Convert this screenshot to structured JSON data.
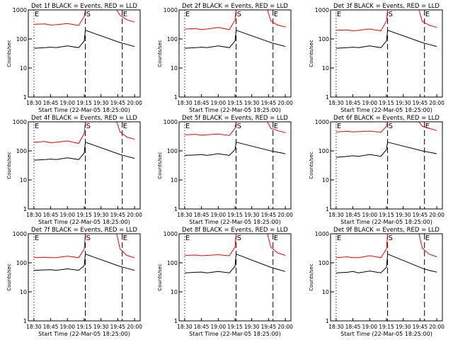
{
  "chart_data": [
    {
      "type": "line",
      "title": "Det 1f BLACK = Events, RED = LLD",
      "xlabel": "Start Time (22-Mar-05 18:25:00)",
      "ylabel": "Counts/sec",
      "x_ticks": [
        "18:30",
        "18:45",
        "19:00",
        "19:15",
        "19:30",
        "19:45",
        "20:00"
      ],
      "y_ticks": [
        "1",
        "10",
        "100",
        "1000"
      ],
      "ylim": [
        1,
        1000
      ],
      "yscale": "log",
      "markers": [
        {
          "label": "E",
          "time": "18:30"
        },
        {
          "label": "S",
          "time": "19:16"
        },
        {
          "label": "E",
          "time": "19:49"
        }
      ],
      "series": [
        {
          "name": "LLD",
          "color": "#ff0000",
          "x": [
            "18:30",
            "18:40",
            "18:45",
            "18:50",
            "19:00",
            "19:10",
            "19:15",
            "19:16",
            "19:44",
            "19:47",
            "19:53",
            "20:00"
          ],
          "y": [
            320,
            330,
            300,
            310,
            340,
            290,
            600,
            1000,
            1000,
            650,
            460,
            380
          ]
        },
        {
          "name": "Events",
          "color": "#000000",
          "x": [
            "18:30",
            "18:40",
            "18:45",
            "18:50",
            "19:00",
            "19:10",
            "19:15",
            "19:16",
            "19:47",
            "19:53",
            "20:00"
          ],
          "y": [
            48,
            50,
            52,
            50,
            58,
            50,
            85,
            200,
            75,
            65,
            55
          ]
        }
      ]
    },
    {
      "type": "line",
      "title": "Det 2f BLACK = Events, RED = LLD",
      "xlabel": "Start Time (22-Mar-05 18:25:00)",
      "ylabel": "Counts/sec",
      "x_ticks": [
        "18:30",
        "18:45",
        "19:00",
        "19:15",
        "19:30",
        "19:45",
        "20:00"
      ],
      "y_ticks": [
        "1",
        "10",
        "100",
        "1000"
      ],
      "ylim": [
        1,
        1000
      ],
      "yscale": "log",
      "markers": [
        {
          "label": "E",
          "time": "18:30"
        },
        {
          "label": "S",
          "time": "19:16"
        },
        {
          "label": "E",
          "time": "19:49"
        }
      ],
      "series": [
        {
          "name": "LLD",
          "color": "#ff0000",
          "x": [
            "18:30",
            "18:40",
            "18:45",
            "18:50",
            "19:00",
            "19:10",
            "19:15",
            "19:16",
            "19:44",
            "19:47",
            "19:53",
            "20:00"
          ],
          "y": [
            220,
            230,
            210,
            220,
            250,
            210,
            450,
            1000,
            1000,
            420,
            300,
            260
          ]
        },
        {
          "name": "Events",
          "color": "#000000",
          "x": [
            "18:30",
            "18:40",
            "18:45",
            "18:50",
            "19:00",
            "19:10",
            "19:15",
            "19:16",
            "19:47",
            "19:53",
            "20:00"
          ],
          "y": [
            48,
            50,
            52,
            50,
            58,
            50,
            85,
            200,
            75,
            65,
            55
          ]
        }
      ]
    },
    {
      "type": "line",
      "title": "Det 3f BLACK = Events, RED = LLD",
      "xlabel": "Start Time (22-Mar-05 18:25:00)",
      "ylabel": "Counts/sec",
      "x_ticks": [
        "18:30",
        "18:45",
        "19:00",
        "19:15",
        "19:30",
        "19:45",
        "20:00"
      ],
      "y_ticks": [
        "1",
        "10",
        "100",
        "1000"
      ],
      "ylim": [
        1,
        1000
      ],
      "yscale": "log",
      "markers": [
        {
          "label": "E",
          "time": "18:30"
        },
        {
          "label": "S",
          "time": "19:16"
        },
        {
          "label": "E",
          "time": "19:49"
        }
      ],
      "series": [
        {
          "name": "LLD",
          "color": "#ff0000",
          "x": [
            "18:30",
            "18:40",
            "18:45",
            "18:50",
            "19:00",
            "19:10",
            "19:15",
            "19:16",
            "19:44",
            "19:47",
            "19:53",
            "20:00"
          ],
          "y": [
            200,
            205,
            190,
            200,
            220,
            190,
            420,
            1000,
            1000,
            400,
            300,
            250
          ]
        },
        {
          "name": "Events",
          "color": "#000000",
          "x": [
            "18:30",
            "18:40",
            "18:45",
            "18:50",
            "19:00",
            "19:10",
            "19:15",
            "19:16",
            "19:47",
            "19:53",
            "20:00"
          ],
          "y": [
            48,
            50,
            52,
            50,
            58,
            50,
            85,
            200,
            75,
            65,
            55
          ]
        }
      ]
    },
    {
      "type": "line",
      "title": "Det 4f BLACK = Events, RED = LLD",
      "xlabel": "Start Time (22-Mar-05 18:25:00)",
      "ylabel": "Counts/sec",
      "x_ticks": [
        "18:30",
        "18:45",
        "19:00",
        "19:15",
        "19:30",
        "19:45",
        "20:00"
      ],
      "y_ticks": [
        "1",
        "10",
        "100",
        "1000"
      ],
      "ylim": [
        1,
        1000
      ],
      "yscale": "log",
      "markers": [
        {
          "label": "E",
          "time": "18:30"
        },
        {
          "label": "S",
          "time": "19:16"
        },
        {
          "label": "E",
          "time": "19:49"
        }
      ],
      "series": [
        {
          "name": "LLD",
          "color": "#ff0000",
          "x": [
            "18:30",
            "18:40",
            "18:45",
            "18:50",
            "19:00",
            "19:10",
            "19:15",
            "19:16",
            "19:44",
            "19:47",
            "19:53",
            "20:00"
          ],
          "y": [
            200,
            210,
            190,
            200,
            220,
            180,
            400,
            1000,
            1000,
            450,
            300,
            250
          ]
        },
        {
          "name": "Events",
          "color": "#000000",
          "x": [
            "18:30",
            "18:40",
            "18:45",
            "18:50",
            "19:00",
            "19:10",
            "19:15",
            "19:16",
            "19:47",
            "19:53",
            "20:00"
          ],
          "y": [
            48,
            50,
            52,
            50,
            58,
            50,
            85,
            200,
            75,
            65,
            55
          ]
        }
      ]
    },
    {
      "type": "line",
      "title": "Det 5f BLACK = Events, RED = LLD",
      "xlabel": "Start Time (22-Mar-05 18:25:00)",
      "ylabel": "Counts/sec",
      "x_ticks": [
        "18:30",
        "18:45",
        "19:00",
        "19:15",
        "19:30",
        "19:45",
        "20:00"
      ],
      "y_ticks": [
        "1",
        "10",
        "100",
        "1000"
      ],
      "ylim": [
        1,
        1000
      ],
      "yscale": "log",
      "markers": [
        {
          "label": "E",
          "time": "18:30"
        },
        {
          "label": "S",
          "time": "19:16"
        },
        {
          "label": "E",
          "time": "19:49"
        }
      ],
      "series": [
        {
          "name": "LLD",
          "color": "#ff0000",
          "x": [
            "18:30",
            "18:40",
            "18:45",
            "18:50",
            "19:00",
            "19:10",
            "19:15",
            "19:16",
            "19:44",
            "19:47",
            "19:53",
            "20:00"
          ],
          "y": [
            360,
            370,
            350,
            360,
            380,
            340,
            600,
            1000,
            1000,
            600,
            500,
            420
          ]
        },
        {
          "name": "Events",
          "color": "#000000",
          "x": [
            "18:30",
            "18:40",
            "18:45",
            "18:50",
            "19:00",
            "19:10",
            "19:15",
            "19:16",
            "19:47",
            "19:53",
            "20:00"
          ],
          "y": [
            70,
            72,
            75,
            70,
            80,
            70,
            110,
            200,
            100,
            90,
            80
          ]
        }
      ]
    },
    {
      "type": "line",
      "title": "Det 6f BLACK = Events, RED = LLD",
      "xlabel": "Start Time (22-Mar-05 18:25:00)",
      "ylabel": "Counts/sec",
      "x_ticks": [
        "18:30",
        "18:45",
        "19:00",
        "19:15",
        "19:30",
        "19:45",
        "20:00"
      ],
      "y_ticks": [
        "1",
        "10",
        "100",
        "1000"
      ],
      "ylim": [
        1,
        1000
      ],
      "yscale": "log",
      "markers": [
        {
          "label": "E",
          "time": "18:30"
        },
        {
          "label": "S",
          "time": "19:16"
        },
        {
          "label": "E",
          "time": "19:49"
        }
      ],
      "series": [
        {
          "name": "LLD",
          "color": "#ff0000",
          "x": [
            "18:30",
            "18:40",
            "18:45",
            "18:50",
            "19:00",
            "19:10",
            "19:15",
            "19:16",
            "19:44",
            "19:47",
            "19:53",
            "20:00"
          ],
          "y": [
            450,
            470,
            450,
            460,
            480,
            440,
            700,
            1000,
            1000,
            700,
            600,
            500
          ]
        },
        {
          "name": "Events",
          "color": "#000000",
          "x": [
            "18:30",
            "18:40",
            "18:45",
            "18:50",
            "19:00",
            "19:10",
            "19:15",
            "19:16",
            "19:47",
            "19:53",
            "20:00"
          ],
          "y": [
            60,
            65,
            68,
            65,
            75,
            65,
            110,
            200,
            100,
            90,
            80
          ]
        }
      ]
    },
    {
      "type": "line",
      "title": "Det 7f BLACK = Events, RED = LLD",
      "xlabel": "Start Time (22-Mar-05 18:25:00)",
      "ylabel": "Counts/sec",
      "x_ticks": [
        "18:30",
        "18:45",
        "19:00",
        "19:15",
        "19:30",
        "19:45",
        "20:00"
      ],
      "y_ticks": [
        "1",
        "10",
        "100",
        "1000"
      ],
      "ylim": [
        1,
        1000
      ],
      "yscale": "log",
      "markers": [
        {
          "label": "E",
          "time": "18:30"
        },
        {
          "label": "S",
          "time": "19:16"
        },
        {
          "label": "E",
          "time": "19:49"
        }
      ],
      "series": [
        {
          "name": "LLD",
          "color": "#ff0000",
          "x": [
            "18:30",
            "18:40",
            "18:45",
            "18:50",
            "19:00",
            "19:10",
            "19:15",
            "19:16",
            "19:44",
            "19:47",
            "19:53",
            "20:00"
          ],
          "y": [
            150,
            155,
            150,
            150,
            170,
            150,
            300,
            1000,
            1000,
            300,
            180,
            150
          ]
        },
        {
          "name": "Events",
          "color": "#000000",
          "x": [
            "18:30",
            "18:40",
            "18:45",
            "18:50",
            "19:00",
            "19:10",
            "19:15",
            "19:16",
            "19:47",
            "19:53",
            "20:00"
          ],
          "y": [
            55,
            57,
            58,
            55,
            62,
            55,
            80,
            200,
            75,
            65,
            55
          ]
        }
      ]
    },
    {
      "type": "line",
      "title": "Det 8f BLACK = Events, RED = LLD",
      "xlabel": "Start Time (22-Mar-05 18:25:00)",
      "ylabel": "Counts/sec",
      "x_ticks": [
        "18:30",
        "18:45",
        "19:00",
        "19:15",
        "19:30",
        "19:45",
        "20:00"
      ],
      "y_ticks": [
        "1",
        "10",
        "100",
        "1000"
      ],
      "ylim": [
        1,
        1000
      ],
      "yscale": "log",
      "markers": [
        {
          "label": "E",
          "time": "18:30"
        },
        {
          "label": "S",
          "time": "19:16"
        },
        {
          "label": "E",
          "time": "19:49"
        }
      ],
      "series": [
        {
          "name": "LLD",
          "color": "#ff0000",
          "x": [
            "18:30",
            "18:40",
            "18:45",
            "18:50",
            "19:00",
            "19:10",
            "19:15",
            "19:16",
            "19:44",
            "19:47",
            "19:53",
            "20:00"
          ],
          "y": [
            180,
            185,
            175,
            180,
            190,
            175,
            350,
            1000,
            1000,
            350,
            220,
            180
          ]
        },
        {
          "name": "Events",
          "color": "#000000",
          "x": [
            "18:30",
            "18:40",
            "18:45",
            "18:50",
            "19:00",
            "19:10",
            "19:15",
            "19:16",
            "19:47",
            "19:53",
            "20:00"
          ],
          "y": [
            45,
            47,
            48,
            45,
            50,
            45,
            75,
            200,
            70,
            60,
            50
          ]
        }
      ]
    },
    {
      "type": "line",
      "title": "Det 9f BLACK = Events, RED = LLD",
      "xlabel": "Start Time (22-Mar-05 18:25:00)",
      "ylabel": "Counts/sec",
      "x_ticks": [
        "18:30",
        "18:45",
        "19:00",
        "19:15",
        "19:30",
        "19:45",
        "20:00"
      ],
      "y_ticks": [
        "1",
        "10",
        "100",
        "1000"
      ],
      "ylim": [
        1,
        1000
      ],
      "yscale": "log",
      "markers": [
        {
          "label": "E",
          "time": "18:30"
        },
        {
          "label": "S",
          "time": "19:16"
        },
        {
          "label": "E",
          "time": "19:49"
        }
      ],
      "series": [
        {
          "name": "LLD",
          "color": "#ff0000",
          "x": [
            "18:30",
            "18:40",
            "18:45",
            "18:50",
            "19:00",
            "19:10",
            "19:15",
            "19:16",
            "19:44",
            "19:47",
            "19:53",
            "20:00"
          ],
          "y": [
            150,
            160,
            150,
            150,
            175,
            150,
            300,
            1000,
            1000,
            320,
            200,
            160
          ]
        },
        {
          "name": "Events",
          "color": "#000000",
          "x": [
            "18:30",
            "18:40",
            "18:45",
            "18:50",
            "19:00",
            "19:10",
            "19:15",
            "19:16",
            "19:47",
            "19:53",
            "20:00"
          ],
          "y": [
            45,
            47,
            50,
            45,
            52,
            45,
            70,
            200,
            65,
            55,
            48
          ]
        }
      ]
    }
  ]
}
